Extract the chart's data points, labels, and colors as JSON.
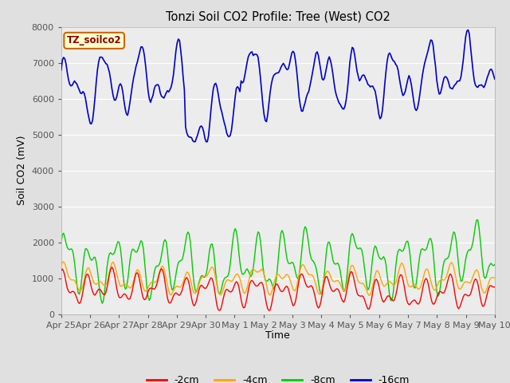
{
  "title": "Tonzi Soil CO2 Profile: Tree (West) CO2",
  "ylabel": "Soil CO2 (mV)",
  "xlabel": "Time",
  "legend_label": "TZ_soilco2",
  "series_labels": [
    "-2cm",
    "-4cm",
    "-8cm",
    "-16cm"
  ],
  "series_colors": [
    "#ff0000",
    "#ffa500",
    "#00cc00",
    "#0000cc"
  ],
  "background_color": "#e0e0e0",
  "plot_bg_color": "#ececec",
  "ylim": [
    0,
    8000
  ],
  "yticks": [
    0,
    1000,
    2000,
    3000,
    4000,
    5000,
    6000,
    7000,
    8000
  ],
  "seed": 42,
  "n_points": 360
}
